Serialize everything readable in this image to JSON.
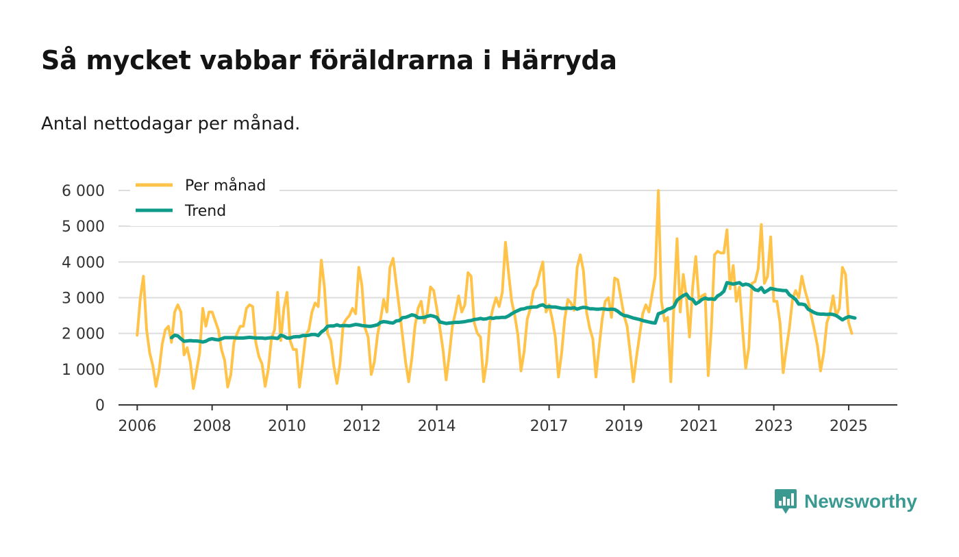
{
  "title": "Så mycket vabbar föräldrarna i Härryda",
  "subtitle": "Antal nettodagar per månad.",
  "brand": {
    "name": "Newsworthy",
    "icon": "newsworthy-logo-icon",
    "color": "#3a9a92"
  },
  "colors": {
    "monthly": "#ffc34a",
    "trend": "#0e9b8a",
    "grid": "#dddddd",
    "axis": "#333333"
  },
  "chart_data": {
    "type": "line",
    "title": "Så mycket vabbar föräldrarna i Härryda",
    "xlabel": "",
    "ylabel": "",
    "xlim": [
      2005.5,
      2026.3
    ],
    "ylim": [
      0,
      6000
    ],
    "grid": true,
    "legend_position": "top-left",
    "yticks": [
      0,
      1000,
      2000,
      3000,
      4000,
      5000,
      6000
    ],
    "ytick_labels": [
      "0",
      "1 000",
      "2 000",
      "3 000",
      "4 000",
      "5 000",
      "6 000"
    ],
    "xticks": [
      2006,
      2008,
      2010,
      2012,
      2014,
      2017,
      2019,
      2021,
      2023,
      2025
    ],
    "xtick_labels": [
      "2006",
      "2008",
      "2010",
      "2012",
      "2014",
      "2017",
      "2019",
      "2021",
      "2023",
      "2025"
    ],
    "series": [
      {
        "name": "Per månad",
        "x_start": 2006.0,
        "x_step": 0.0833333,
        "values": [
          1950,
          3000,
          3600,
          2100,
          1450,
          1100,
          520,
          950,
          1700,
          2100,
          2200,
          1750,
          2600,
          2800,
          2600,
          1400,
          1600,
          1200,
          460,
          950,
          1450,
          2700,
          2200,
          2600,
          2600,
          2350,
          2100,
          1550,
          1250,
          500,
          850,
          1750,
          2000,
          2200,
          2200,
          2700,
          2800,
          2750,
          1750,
          1350,
          1150,
          520,
          1000,
          1850,
          2100,
          3150,
          1800,
          2700,
          3150,
          1800,
          1550,
          1550,
          500,
          1200,
          1950,
          2100,
          2600,
          2850,
          2750,
          4050,
          3300,
          2000,
          1800,
          1100,
          600,
          1150,
          2250,
          2400,
          2500,
          2700,
          2550,
          3850,
          3350,
          2150,
          1900,
          850,
          1200,
          1950,
          2400,
          2950,
          2600,
          3850,
          4100,
          3400,
          2700,
          1950,
          1200,
          650,
          1300,
          2200,
          2700,
          2900,
          2300,
          2600,
          3300,
          3200,
          2700,
          2150,
          1550,
          700,
          1400,
          2200,
          2600,
          3050,
          2600,
          2800,
          3700,
          3600,
          2300,
          2000,
          1900,
          650,
          1200,
          2300,
          2700,
          3000,
          2750,
          3150,
          4550,
          3700,
          2900,
          2500,
          1950,
          950,
          1500,
          2400,
          2700,
          3200,
          3350,
          3700,
          4000,
          2600,
          2800,
          2400,
          1900,
          780,
          1450,
          2400,
          2950,
          2850,
          2650,
          3850,
          4200,
          3750,
          2600,
          2150,
          1850,
          780,
          1600,
          2400,
          2900,
          3000,
          2450,
          3550,
          3500,
          3000,
          2500,
          2200,
          1450,
          650,
          1350,
          1950,
          2550,
          2800,
          2600,
          3100,
          3600,
          6000,
          2900,
          2350,
          2450,
          650,
          2800,
          4650,
          2600,
          3650,
          3000,
          1900,
          3300,
          4150,
          2950,
          3050,
          3100,
          820,
          2150,
          4200,
          4300,
          4250,
          4250,
          4900,
          3250,
          3900,
          2900,
          3300,
          2100,
          1030,
          1600,
          3400,
          3450,
          3800,
          5050,
          3400,
          3600,
          4700,
          2900,
          2900,
          2300,
          900,
          1550,
          2150,
          2950,
          3200,
          3000,
          3600,
          3200,
          2900,
          2500,
          2100,
          1650,
          950,
          1450,
          2300,
          2550,
          3050,
          2500,
          2700,
          3850,
          3650,
          2300,
          2000
        ]
      },
      {
        "name": "Trend",
        "x_start": 2006.9167,
        "x_step": 0.0833333,
        "values": [
          1880,
          1950,
          1930,
          1850,
          1780,
          1790,
          1800,
          1790,
          1790,
          1780,
          1760,
          1780,
          1830,
          1850,
          1830,
          1820,
          1850,
          1880,
          1880,
          1880,
          1880,
          1870,
          1870,
          1870,
          1880,
          1890,
          1880,
          1870,
          1870,
          1870,
          1860,
          1870,
          1880,
          1870,
          1860,
          1950,
          1920,
          1870,
          1870,
          1900,
          1910,
          1910,
          1940,
          1940,
          1950,
          1970,
          1970,
          1940,
          2040,
          2100,
          2200,
          2210,
          2210,
          2240,
          2210,
          2220,
          2220,
          2210,
          2230,
          2250,
          2240,
          2220,
          2210,
          2200,
          2200,
          2220,
          2240,
          2310,
          2330,
          2320,
          2300,
          2290,
          2350,
          2360,
          2440,
          2450,
          2480,
          2520,
          2500,
          2440,
          2440,
          2450,
          2480,
          2500,
          2480,
          2450,
          2320,
          2300,
          2280,
          2290,
          2300,
          2310,
          2310,
          2320,
          2330,
          2350,
          2360,
          2390,
          2400,
          2420,
          2400,
          2410,
          2440,
          2420,
          2440,
          2440,
          2450,
          2450,
          2490,
          2550,
          2600,
          2640,
          2680,
          2690,
          2720,
          2730,
          2740,
          2740,
          2780,
          2800,
          2740,
          2750,
          2740,
          2740,
          2720,
          2700,
          2700,
          2710,
          2700,
          2720,
          2680,
          2710,
          2730,
          2720,
          2690,
          2690,
          2680,
          2680,
          2690,
          2680,
          2670,
          2680,
          2670,
          2620,
          2550,
          2500,
          2490,
          2460,
          2430,
          2410,
          2390,
          2360,
          2340,
          2320,
          2300,
          2290,
          2550,
          2580,
          2620,
          2680,
          2700,
          2750,
          2930,
          3000,
          3060,
          3100,
          2980,
          2950,
          2830,
          2880,
          2950,
          2990,
          2960,
          2970,
          2950,
          3050,
          3100,
          3180,
          3420,
          3400,
          3380,
          3400,
          3420,
          3350,
          3380,
          3360,
          3300,
          3220,
          3200,
          3280,
          3150,
          3200,
          3260,
          3240,
          3220,
          3210,
          3200,
          3200,
          3080,
          3020,
          2950,
          2820,
          2820,
          2800,
          2680,
          2630,
          2580,
          2550,
          2540,
          2540,
          2530,
          2540,
          2530,
          2500,
          2440,
          2380,
          2430,
          2470,
          2450,
          2430
        ]
      }
    ]
  }
}
